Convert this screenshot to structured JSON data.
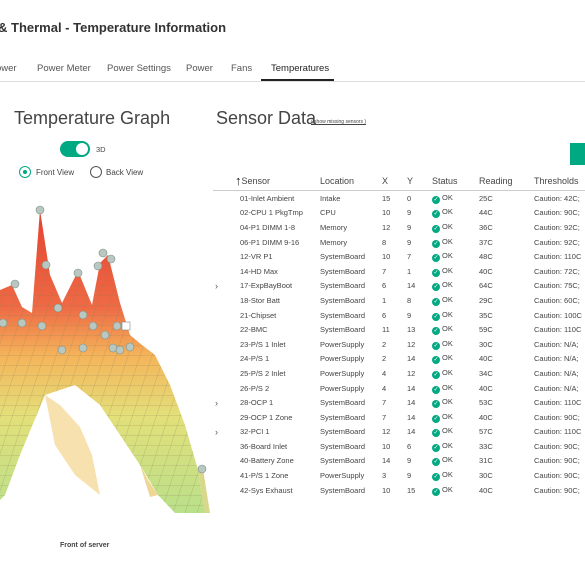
{
  "header": {
    "title": "& Thermal - Temperature Information"
  },
  "tabs": [
    {
      "label": "ower"
    },
    {
      "label": "Power Meter"
    },
    {
      "label": "Power Settings"
    },
    {
      "label": "Power"
    },
    {
      "label": "Fans"
    },
    {
      "label": "Temperatures",
      "active": true
    }
  ],
  "graph": {
    "title": "Temperature Graph",
    "toggle_label": "3D",
    "toggle_on": true,
    "radio_front": "Front View",
    "radio_back": "Back View",
    "selected_view": "Front View",
    "caption": "Front of server"
  },
  "sensors": {
    "title": "Sensor Data",
    "missing_link": "( show missing sensors )",
    "columns": [
      "Sensor",
      "Location",
      "X",
      "Y",
      "Status",
      "Reading",
      "Thresholds"
    ],
    "rows": [
      {
        "sensor": "01-Inlet Ambient",
        "location": "Intake",
        "x": "15",
        "y": "0",
        "status": "OK",
        "reading": "25C",
        "thresholds": "Caution: 42C;"
      },
      {
        "sensor": "02-CPU 1 PkgTmp",
        "location": "CPU",
        "x": "10",
        "y": "9",
        "status": "OK",
        "reading": "44C",
        "thresholds": "Caution: 90C;"
      },
      {
        "sensor": "04-P1 DIMM 1-8",
        "location": "Memory",
        "x": "12",
        "y": "9",
        "status": "OK",
        "reading": "36C",
        "thresholds": "Caution: 92C;"
      },
      {
        "sensor": "06-P1 DIMM 9-16",
        "location": "Memory",
        "x": "8",
        "y": "9",
        "status": "OK",
        "reading": "37C",
        "thresholds": "Caution: 92C;"
      },
      {
        "sensor": "12-VR P1",
        "location": "SystemBoard",
        "x": "10",
        "y": "7",
        "status": "OK",
        "reading": "48C",
        "thresholds": "Caution: 110C"
      },
      {
        "sensor": "14-HD Max",
        "location": "SystemBoard",
        "x": "7",
        "y": "1",
        "status": "OK",
        "reading": "40C",
        "thresholds": "Caution: 72C;"
      },
      {
        "sensor": "17-ExpBayBoot",
        "location": "SystemBoard",
        "x": "6",
        "y": "14",
        "status": "OK",
        "reading": "64C",
        "thresholds": "Caution: 75C;"
      },
      {
        "sensor": "18-Stor Batt",
        "location": "SystemBoard",
        "x": "1",
        "y": "8",
        "status": "OK",
        "reading": "29C",
        "thresholds": "Caution: 60C;"
      },
      {
        "sensor": "21-Chipset",
        "location": "SystemBoard",
        "x": "6",
        "y": "9",
        "status": "OK",
        "reading": "35C",
        "thresholds": "Caution: 100C"
      },
      {
        "sensor": "22-BMC",
        "location": "SystemBoard",
        "x": "11",
        "y": "13",
        "status": "OK",
        "reading": "59C",
        "thresholds": "Caution: 110C"
      },
      {
        "sensor": "23-P/S 1 Inlet",
        "location": "PowerSupply",
        "x": "2",
        "y": "12",
        "status": "OK",
        "reading": "30C",
        "thresholds": "Caution: N/A;"
      },
      {
        "sensor": "24-P/S 1",
        "location": "PowerSupply",
        "x": "2",
        "y": "14",
        "status": "OK",
        "reading": "40C",
        "thresholds": "Caution: N/A;"
      },
      {
        "sensor": "25-P/S 2 Inlet",
        "location": "PowerSupply",
        "x": "4",
        "y": "12",
        "status": "OK",
        "reading": "34C",
        "thresholds": "Caution: N/A;"
      },
      {
        "sensor": "26-P/S 2",
        "location": "PowerSupply",
        "x": "4",
        "y": "14",
        "status": "OK",
        "reading": "40C",
        "thresholds": "Caution: N/A;"
      },
      {
        "sensor": "28-OCP 1",
        "location": "SystemBoard",
        "x": "7",
        "y": "14",
        "status": "OK",
        "reading": "53C",
        "thresholds": "Caution: 110C"
      },
      {
        "sensor": "29-OCP 1 Zone",
        "location": "SystemBoard",
        "x": "7",
        "y": "14",
        "status": "OK",
        "reading": "40C",
        "thresholds": "Caution: 90C;"
      },
      {
        "sensor": "32-PCI 1",
        "location": "SystemBoard",
        "x": "12",
        "y": "14",
        "status": "OK",
        "reading": "57C",
        "thresholds": "Caution: 110C"
      },
      {
        "sensor": "36-Board Inlet",
        "location": "SystemBoard",
        "x": "10",
        "y": "6",
        "status": "OK",
        "reading": "33C",
        "thresholds": "Caution: 90C;"
      },
      {
        "sensor": "40-Battery Zone",
        "location": "SystemBoard",
        "x": "14",
        "y": "9",
        "status": "OK",
        "reading": "31C",
        "thresholds": "Caution: 90C;"
      },
      {
        "sensor": "41-P/S 1 Zone",
        "location": "PowerSupply",
        "x": "3",
        "y": "9",
        "status": "OK",
        "reading": "30C",
        "thresholds": "Caution: 90C;"
      },
      {
        "sensor": "42-Sys Exhaust",
        "location": "SystemBoard",
        "x": "10",
        "y": "15",
        "status": "OK",
        "reading": "40C",
        "thresholds": "Caution: 90C;"
      }
    ]
  },
  "colors": {
    "accent": "#01a982",
    "hot": "#e8402f",
    "warm": "#f5b45a",
    "cool": "#c9e68a"
  }
}
